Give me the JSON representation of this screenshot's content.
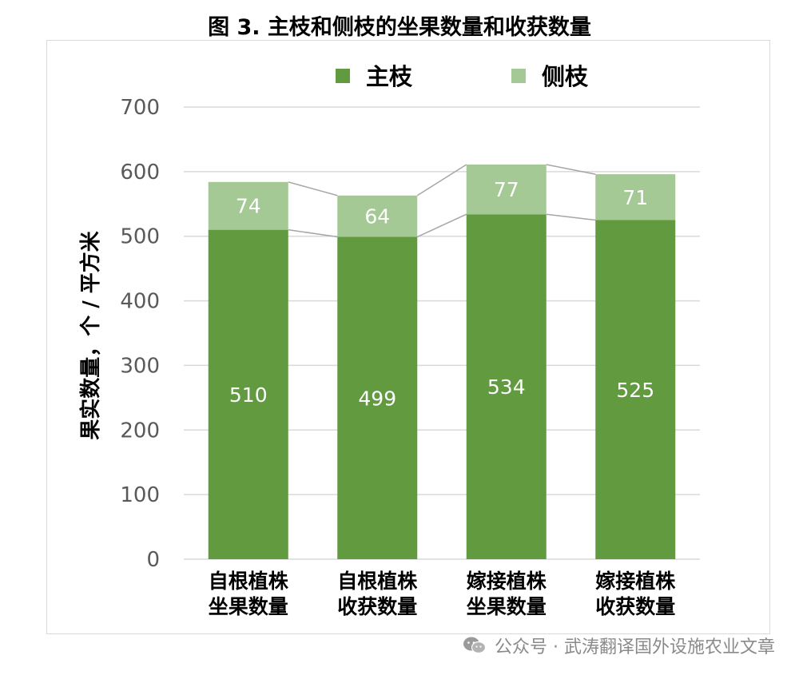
{
  "chart_data": {
    "type": "bar",
    "stacked": true,
    "title": "图 3. 主枝和侧枝的坐果数量和收获数量",
    "ylabel": "果实数量，个 / 平方米",
    "ylim": [
      0,
      700
    ],
    "yticks": [
      0,
      100,
      200,
      300,
      400,
      500,
      600,
      700
    ],
    "grid": true,
    "legend_position": "top",
    "categories": [
      [
        "自根植株",
        "坐果数量"
      ],
      [
        "自根植株",
        "收获数量"
      ],
      [
        "嫁接植株",
        "坐果数量"
      ],
      [
        "嫁接植株",
        "收获数量"
      ]
    ],
    "series": [
      {
        "name": "主枝",
        "values": [
          510,
          499,
          534,
          525
        ],
        "color": "#629a40"
      },
      {
        "name": "侧枝",
        "values": [
          74,
          64,
          77,
          71
        ],
        "color": "#a4c994"
      }
    ],
    "series_lines": true
  },
  "watermark": {
    "icon": "wechat-icon",
    "text": "公众号 · 武涛翻译国外设施农业文章"
  }
}
